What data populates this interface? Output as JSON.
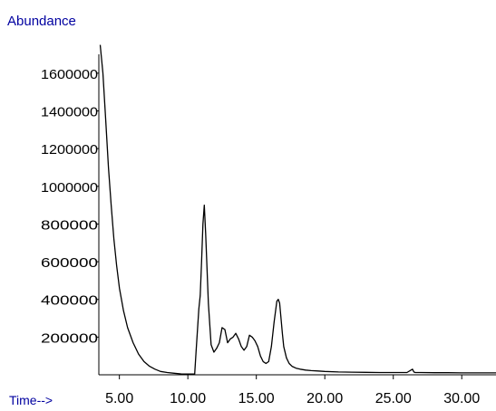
{
  "chart_data": {
    "type": "line",
    "ylabel": "Abundance",
    "xlabel": "Time-->",
    "x_ticks": [
      "5.00",
      "10.00",
      "15.00",
      "20.00",
      "25.00",
      "30.00"
    ],
    "x_tick_values": [
      5,
      10,
      15,
      20,
      25,
      30
    ],
    "y_ticks": [
      "200000",
      "400000",
      "600000",
      "800000",
      "1000000",
      "1200000",
      "1400000",
      "1600000"
    ],
    "y_tick_values": [
      200000,
      400000,
      600000,
      800000,
      1000000,
      1200000,
      1400000,
      1600000
    ],
    "xlim": [
      3.5,
      32.5
    ],
    "ylim": [
      0,
      1700000
    ],
    "grid": false,
    "series": [
      {
        "color": "#000000",
        "x": [
          3.6,
          3.8,
          4.0,
          4.2,
          4.4,
          4.6,
          4.8,
          5.0,
          5.3,
          5.6,
          6.0,
          6.4,
          6.8,
          7.2,
          7.6,
          8.0,
          8.5,
          9.0,
          9.5,
          10.0,
          10.5,
          10.6,
          10.8,
          10.9,
          11.0,
          11.1,
          11.2,
          11.3,
          11.5,
          11.7,
          11.9,
          12.1,
          12.3,
          12.5,
          12.7,
          12.9,
          13.1,
          13.3,
          13.5,
          13.7,
          13.9,
          14.1,
          14.3,
          14.5,
          14.7,
          14.9,
          15.1,
          15.3,
          15.5,
          15.7,
          15.9,
          16.1,
          16.3,
          16.5,
          16.6,
          16.7,
          16.8,
          16.9,
          17.0,
          17.2,
          17.4,
          17.6,
          17.9,
          18.2,
          18.6,
          19.0,
          19.5,
          20.0,
          21.0,
          22.0,
          23.0,
          24.0,
          25.0,
          26.0,
          26.4,
          26.5,
          26.6,
          27.0,
          28.0,
          29.0,
          30.0,
          31.0,
          32.0,
          32.5
        ],
        "y": [
          1750000,
          1600000,
          1350000,
          1100000,
          900000,
          720000,
          580000,
          460000,
          340000,
          250000,
          170000,
          110000,
          70000,
          45000,
          30000,
          18000,
          12000,
          8000,
          5000,
          4000,
          4000,
          120000,
          350000,
          420000,
          600000,
          800000,
          900000,
          750000,
          380000,
          160000,
          120000,
          140000,
          170000,
          250000,
          240000,
          170000,
          190000,
          200000,
          220000,
          190000,
          150000,
          130000,
          150000,
          210000,
          200000,
          180000,
          150000,
          100000,
          70000,
          60000,
          70000,
          150000,
          280000,
          390000,
          400000,
          380000,
          300000,
          220000,
          150000,
          90000,
          60000,
          45000,
          35000,
          30000,
          25000,
          22000,
          20000,
          18000,
          15000,
          14000,
          13000,
          12000,
          12000,
          12000,
          30000,
          15000,
          12000,
          12000,
          11000,
          11000,
          10000,
          10000,
          10000,
          10000
        ]
      }
    ]
  }
}
